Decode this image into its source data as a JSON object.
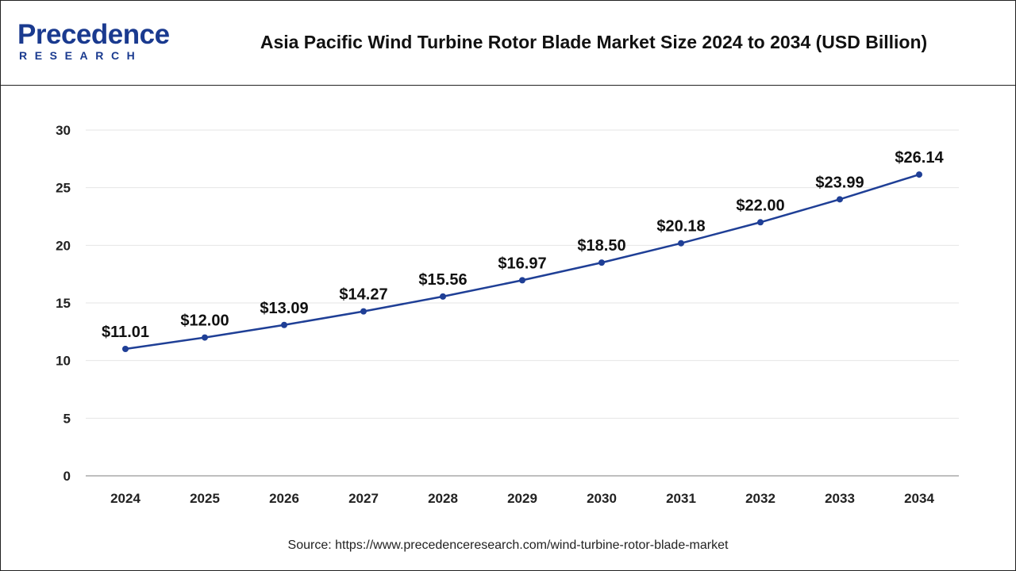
{
  "header": {
    "logo_top": "recedence",
    "logo_letter": "P",
    "logo_bottom": "RESEARCH",
    "title": "Asia Pacific Wind Turbine Rotor Blade Market Size 2024 to 2034 (USD Billion)"
  },
  "source": "Source: https://www.precedenceresearch.com/wind-turbine-rotor-blade-market",
  "colors": {
    "line": "#1f3f96",
    "brand": "#1a3a8f",
    "grid": "#e6e6e6",
    "axis": "#999999"
  },
  "chart_data": {
    "type": "line",
    "title": "Asia Pacific Wind Turbine Rotor Blade Market Size 2024 to 2034 (USD Billion)",
    "xlabel": "",
    "ylabel": "",
    "categories": [
      "2024",
      "2025",
      "2026",
      "2027",
      "2028",
      "2029",
      "2030",
      "2031",
      "2032",
      "2033",
      "2034"
    ],
    "values": [
      11.01,
      12.0,
      13.09,
      14.27,
      15.56,
      16.97,
      18.5,
      20.18,
      22.0,
      23.99,
      26.14
    ],
    "labels": [
      "$11.01",
      "$12.00",
      "$13.09",
      "$14.27",
      "$15.56",
      "$16.97",
      "$18.50",
      "$20.18",
      "$22.00",
      "$23.99",
      "$26.14"
    ],
    "yticks": [
      0,
      5,
      10,
      15,
      20,
      25,
      30
    ],
    "ylim": [
      0,
      30
    ],
    "grid": true,
    "legend": "none"
  }
}
